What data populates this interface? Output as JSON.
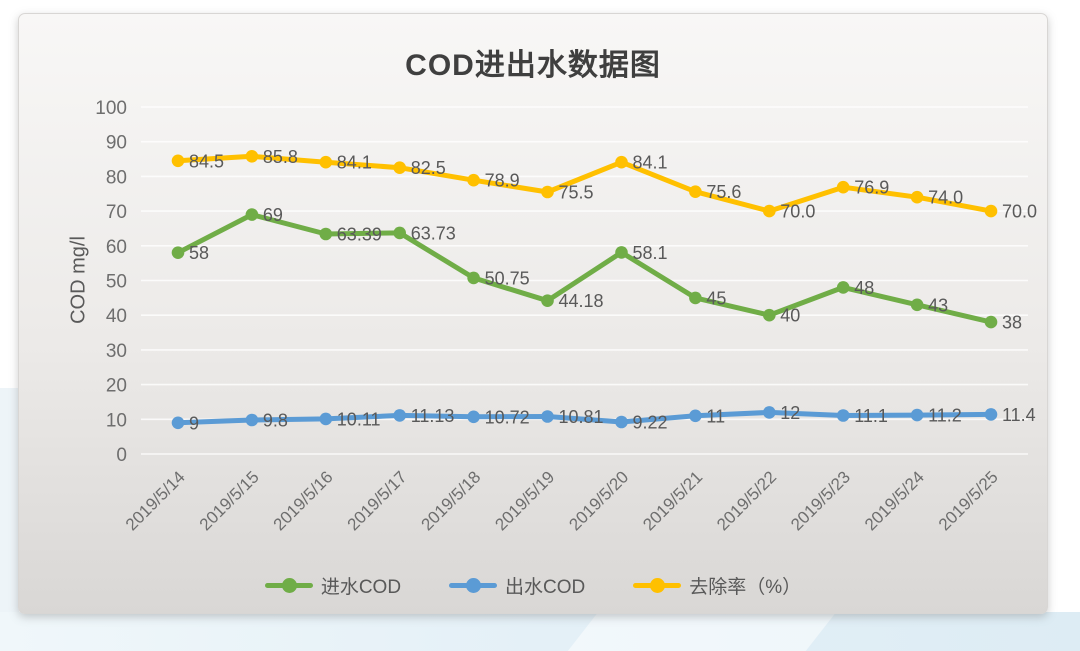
{
  "chart_data": {
    "type": "line",
    "title": "COD进出水数据图",
    "ylabel": "COD mg/l",
    "ylim": [
      0,
      100
    ],
    "yticks": [
      "0",
      "10",
      "20",
      "30",
      "40",
      "50",
      "60",
      "70",
      "80",
      "90",
      "100"
    ],
    "grid": true,
    "legend_position": "bottom",
    "categories": [
      "2019/5/14",
      "2019/5/15",
      "2019/5/16",
      "2019/5/17",
      "2019/5/18",
      "2019/5/19",
      "2019/5/20",
      "2019/5/21",
      "2019/5/22",
      "2019/5/23",
      "2019/5/24",
      "2019/5/25"
    ],
    "series": [
      {
        "name": "进水COD",
        "color": "#70AD47",
        "values": [
          58,
          69,
          63.39,
          63.73,
          50.75,
          44.18,
          58.1,
          45,
          40,
          48,
          43,
          38
        ],
        "labels": [
          "58",
          "69",
          "63.39",
          "63.73",
          "50.75",
          "44.18",
          "58.1",
          "45",
          "40",
          "48",
          "43",
          "38"
        ]
      },
      {
        "name": "出水COD",
        "color": "#5B9BD5",
        "values": [
          9,
          9.8,
          10.11,
          11.13,
          10.72,
          10.81,
          9.22,
          11,
          12,
          11.1,
          11.2,
          11.4
        ],
        "labels": [
          "9",
          "9.8",
          "10.11",
          "11.13",
          "10.72",
          "10.81",
          "9.22",
          "11",
          "12",
          "11.1",
          "11.2",
          "11.4"
        ]
      },
      {
        "name": "去除率（%）",
        "color": "#FFC000",
        "values": [
          84.5,
          85.8,
          84.1,
          82.5,
          78.9,
          75.5,
          84.1,
          75.6,
          70.0,
          76.9,
          74.0,
          70.0
        ],
        "labels": [
          "84.5",
          "85.8",
          "84.1",
          "82.5",
          "78.9",
          "75.5",
          "84.1",
          "75.6",
          "70.0",
          "76.9",
          "74.0",
          "70.0"
        ]
      }
    ]
  }
}
